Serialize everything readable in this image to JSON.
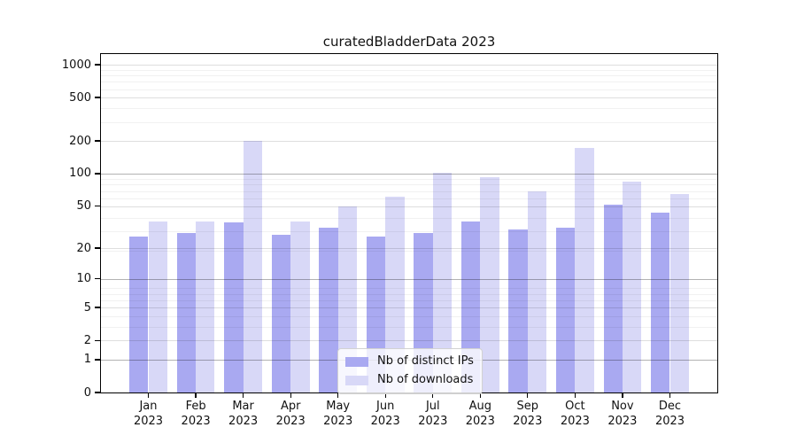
{
  "title": "curatedBladderData 2023",
  "chart_data": {
    "type": "bar",
    "title": "curatedBladderData 2023",
    "categories": [
      "Jan 2023",
      "Feb 2023",
      "Mar 2023",
      "Apr 2023",
      "May 2023",
      "Jun 2023",
      "Jul 2023",
      "Aug 2023",
      "Sep 2023",
      "Oct 2023",
      "Nov 2023",
      "Dec 2023"
    ],
    "series": [
      {
        "name": "Nb of distinct IPs",
        "color": "#a9a9f1",
        "values": [
          26,
          28,
          35,
          27,
          31,
          26,
          28,
          36,
          30,
          31,
          51,
          43
        ]
      },
      {
        "name": "Nb of downloads",
        "color": "#d8d8f7",
        "values": [
          36,
          36,
          200,
          36,
          50,
          61,
          102,
          93,
          68,
          172,
          85,
          65
        ]
      }
    ],
    "xlabel": "",
    "ylabel": "",
    "yscale": "log1p",
    "yticks": [
      0,
      1,
      2,
      5,
      10,
      20,
      50,
      100,
      200,
      500,
      1000
    ],
    "ytick_labels": [
      "0",
      "1",
      "2",
      "5",
      "10",
      "20",
      "50",
      "100",
      "200",
      "500",
      "1000"
    ],
    "ylim": [
      0,
      1257
    ],
    "grid": true,
    "emphasized_gridlines": [
      1,
      10,
      100
    ],
    "legend_position": "lower center",
    "legend_items": [
      {
        "label": "Nb of distinct IPs",
        "color": "#a9a9f1"
      },
      {
        "label": "Nb of downloads",
        "color": "#d8d8f7"
      }
    ],
    "background_color": "#ffffff",
    "spine_color": "#000000"
  }
}
